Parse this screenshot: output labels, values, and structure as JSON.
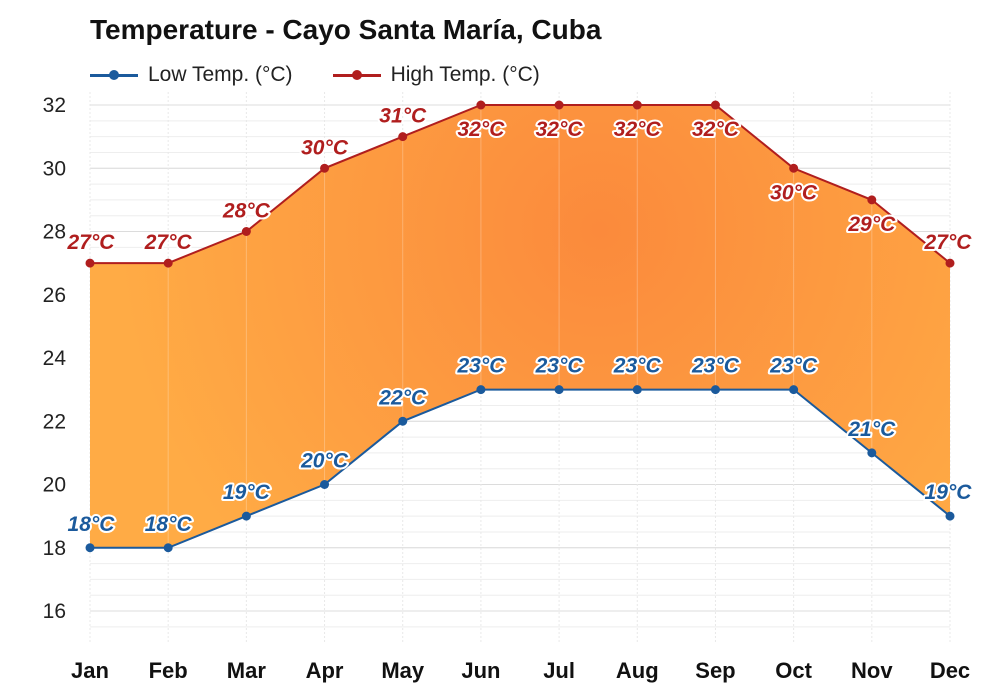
{
  "title": "Temperature - Cayo Santa María, Cuba",
  "colors": {
    "low": "#1b5a9c",
    "high": "#b01e1e",
    "fill_light": "#ffab45",
    "fill_dark": "#fb8a3c"
  },
  "chart_data": {
    "type": "area",
    "categories": [
      "Jan",
      "Feb",
      "Mar",
      "Apr",
      "May",
      "Jun",
      "Jul",
      "Aug",
      "Sep",
      "Oct",
      "Nov",
      "Dec"
    ],
    "series": [
      {
        "name": "Low Temp. (°C)",
        "values": [
          18,
          18,
          19,
          20,
          22,
          23,
          23,
          23,
          23,
          23,
          21,
          19
        ]
      },
      {
        "name": "High Temp. (°C)",
        "values": [
          27,
          27,
          28,
          30,
          31,
          32,
          32,
          32,
          32,
          30,
          29,
          27
        ]
      }
    ],
    "data_label_suffix": "°C",
    "ylim": [
      15,
      32
    ],
    "yticks": [
      16,
      18,
      20,
      22,
      24,
      26,
      28,
      30,
      32
    ],
    "title": "Temperature - Cayo Santa María, Cuba",
    "xlabel": "",
    "ylabel": "",
    "grid": true,
    "legend_position": "top-left"
  }
}
